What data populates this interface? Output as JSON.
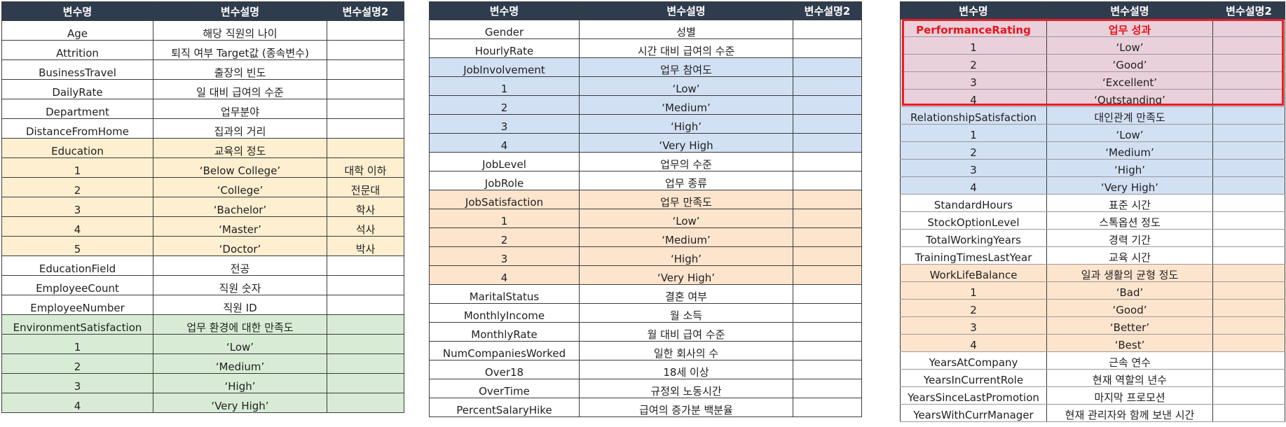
{
  "headers": {
    "name": "변수명",
    "desc": "변수설명",
    "desc2": "변수설명2"
  },
  "tables": [
    {
      "rows": [
        {
          "name": "Age",
          "desc": "해당 직원의 나이",
          "desc2": "",
          "tint": "none"
        },
        {
          "name": "Attrition",
          "desc": "퇴직 여부 Target값 (종속변수)",
          "desc2": "",
          "tint": "none"
        },
        {
          "name": "BusinessTravel",
          "desc": "출장의 빈도",
          "desc2": "",
          "tint": "none"
        },
        {
          "name": "DailyRate",
          "desc": "일 대비 급여의 수준",
          "desc2": "",
          "tint": "none"
        },
        {
          "name": "Department",
          "desc": "업무분야",
          "desc2": "",
          "tint": "none"
        },
        {
          "name": "DistanceFromHome",
          "desc": "집과의 거리",
          "desc2": "",
          "tint": "none"
        },
        {
          "name": "Education",
          "desc": "교육의 정도",
          "desc2": "",
          "tint": "yellow"
        },
        {
          "name": "1",
          "desc": "‘Below College’",
          "desc2": "대학 이하",
          "tint": "yellow"
        },
        {
          "name": "2",
          "desc": "‘College’",
          "desc2": "전문대",
          "tint": "yellow"
        },
        {
          "name": "3",
          "desc": "‘Bachelor’",
          "desc2": "학사",
          "tint": "yellow"
        },
        {
          "name": "4",
          "desc": "‘Master’",
          "desc2": "석사",
          "tint": "yellow"
        },
        {
          "name": "5",
          "desc": "‘Doctor’",
          "desc2": "박사",
          "tint": "yellow"
        },
        {
          "name": "EducationField",
          "desc": "전공",
          "desc2": "",
          "tint": "none"
        },
        {
          "name": "EmployeeCount",
          "desc": "직원 숫자",
          "desc2": "",
          "tint": "none"
        },
        {
          "name": "EmployeeNumber",
          "desc": "직원 ID",
          "desc2": "",
          "tint": "none"
        },
        {
          "name": "EnvironmentSatisfaction",
          "desc": "업무 환경에 대한 만족도",
          "desc2": "",
          "tint": "green"
        },
        {
          "name": "1",
          "desc": "‘Low’",
          "desc2": "",
          "tint": "green"
        },
        {
          "name": "2",
          "desc": "‘Medium’",
          "desc2": "",
          "tint": "green"
        },
        {
          "name": "3",
          "desc": "‘High’",
          "desc2": "",
          "tint": "green"
        },
        {
          "name": "4",
          "desc": "‘Very High’",
          "desc2": "",
          "tint": "green"
        }
      ]
    },
    {
      "rows": [
        {
          "name": "Gender",
          "desc": "성별",
          "desc2": "",
          "tint": "none"
        },
        {
          "name": "HourlyRate",
          "desc": "시간 대비 급여의 수준",
          "desc2": "",
          "tint": "none"
        },
        {
          "name": "JobInvolvement",
          "desc": "업무 참여도",
          "desc2": "",
          "tint": "blue"
        },
        {
          "name": "1",
          "desc": "‘Low’",
          "desc2": "",
          "tint": "blue"
        },
        {
          "name": "2",
          "desc": "‘Medium’",
          "desc2": "",
          "tint": "blue"
        },
        {
          "name": "3",
          "desc": "‘High’",
          "desc2": "",
          "tint": "blue"
        },
        {
          "name": "4",
          "desc": "‘Very High",
          "desc2": "",
          "tint": "blue"
        },
        {
          "name": "JobLevel",
          "desc": "업무의 수준",
          "desc2": "",
          "tint": "none"
        },
        {
          "name": "JobRole",
          "desc": "업무 종류",
          "desc2": "",
          "tint": "none"
        },
        {
          "name": "JobSatisfaction",
          "desc": "업무 만족도",
          "desc2": "",
          "tint": "orange"
        },
        {
          "name": "1",
          "desc": "‘Low’",
          "desc2": "",
          "tint": "orange"
        },
        {
          "name": "2",
          "desc": "‘Medium’",
          "desc2": "",
          "tint": "orange"
        },
        {
          "name": "3",
          "desc": "‘High’",
          "desc2": "",
          "tint": "orange"
        },
        {
          "name": "4",
          "desc": "‘Very High’",
          "desc2": "",
          "tint": "orange"
        },
        {
          "name": "MaritalStatus",
          "desc": "결혼 여부",
          "desc2": "",
          "tint": "none"
        },
        {
          "name": "MonthlyIncome",
          "desc": "월 소득",
          "desc2": "",
          "tint": "none"
        },
        {
          "name": "MonthlyRate",
          "desc": "월 대비 급여 수준",
          "desc2": "",
          "tint": "none"
        },
        {
          "name": "NumCompaniesWorked",
          "desc": "일한 회사의 수",
          "desc2": "",
          "tint": "none"
        },
        {
          "name": "Over18",
          "desc": "18세 이상",
          "desc2": "",
          "tint": "none"
        },
        {
          "name": "OverTime",
          "desc": "규정외 노동시간",
          "desc2": "",
          "tint": "none"
        },
        {
          "name": "PercentSalaryHike",
          "desc": "급여의 증가분 백분율",
          "desc2": "",
          "tint": "none"
        }
      ]
    },
    {
      "rows": [
        {
          "name": "PerformanceRating",
          "desc": "업무 성과",
          "desc2": "",
          "tint": "pink",
          "emph": true
        },
        {
          "name": "1",
          "desc": "‘Low’",
          "desc2": "",
          "tint": "pink"
        },
        {
          "name": "2",
          "desc": "‘Good’",
          "desc2": "",
          "tint": "pink"
        },
        {
          "name": "3",
          "desc": "‘Excellent’",
          "desc2": "",
          "tint": "pink"
        },
        {
          "name": "4",
          "desc": "‘Outstanding’",
          "desc2": "",
          "tint": "pink"
        },
        {
          "name": "RelationshipSatisfaction",
          "desc": "대인관계 만족도",
          "desc2": "",
          "tint": "blue"
        },
        {
          "name": "1",
          "desc": "‘Low’",
          "desc2": "",
          "tint": "blue"
        },
        {
          "name": "2",
          "desc": "‘Medium’",
          "desc2": "",
          "tint": "blue"
        },
        {
          "name": "3",
          "desc": "‘High’",
          "desc2": "",
          "tint": "blue"
        },
        {
          "name": "4",
          "desc": "‘Very High’",
          "desc2": "",
          "tint": "blue"
        },
        {
          "name": "StandardHours",
          "desc": "표준 시간",
          "desc2": "",
          "tint": "none"
        },
        {
          "name": "StockOptionLevel",
          "desc": "스톡옵션 정도",
          "desc2": "",
          "tint": "none"
        },
        {
          "name": "TotalWorkingYears",
          "desc": "경력 기간",
          "desc2": "",
          "tint": "none"
        },
        {
          "name": "TrainingTimesLastYear",
          "desc": "교육 시간",
          "desc2": "",
          "tint": "none"
        },
        {
          "name": "WorkLifeBalance",
          "desc": "일과 생활의 균형 정도",
          "desc2": "",
          "tint": "orange"
        },
        {
          "name": "1",
          "desc": "‘Bad’",
          "desc2": "",
          "tint": "orange"
        },
        {
          "name": "2",
          "desc": "‘Good’",
          "desc2": "",
          "tint": "orange"
        },
        {
          "name": "3",
          "desc": "‘Better’",
          "desc2": "",
          "tint": "orange"
        },
        {
          "name": "4",
          "desc": "‘Best’",
          "desc2": "",
          "tint": "orange"
        },
        {
          "name": "YearsAtCompany",
          "desc": "근속 연수",
          "desc2": "",
          "tint": "none"
        },
        {
          "name": "YearsInCurrentRole",
          "desc": "현재 역할의 년수",
          "desc2": "",
          "tint": "none"
        },
        {
          "name": "YearsSinceLastPromotion",
          "desc": "마지막 프로모션",
          "desc2": "",
          "tint": "none"
        },
        {
          "name": "YearsWithCurrManager",
          "desc": "현재 관리자와 함께 보낸 시간",
          "desc2": "",
          "tint": "none"
        }
      ]
    }
  ]
}
